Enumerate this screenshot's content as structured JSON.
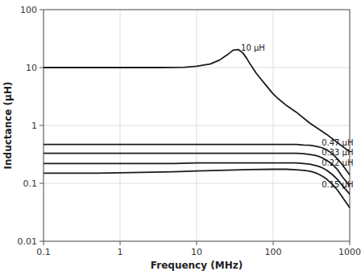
{
  "chart_data": {
    "type": "line",
    "title": "",
    "xlabel": "Frequency (MHz)",
    "ylabel": "Inductance (μH)",
    "log": true,
    "grid": true,
    "color": "#1a1a1a",
    "xlim": [
      0.1,
      1000
    ],
    "ylim": [
      0.01,
      100
    ],
    "xticks": [
      0.1,
      1,
      10,
      100,
      1000
    ],
    "yticks": [
      0.01,
      0.1,
      1,
      10,
      100
    ],
    "series": [
      {
        "x": [
          0.1,
          0.3,
          0.5,
          1,
          2,
          3,
          5,
          7,
          10,
          15,
          20,
          25,
          30,
          35,
          40,
          45,
          50,
          55,
          60,
          70,
          80,
          100,
          120,
          150,
          200,
          300,
          400,
          500,
          700,
          1000
        ],
        "values": [
          10.0,
          10.0,
          10.0,
          10.0,
          10.0,
          10.0,
          10.05,
          10.15,
          10.5,
          11.5,
          13.5,
          16.5,
          20.0,
          20.5,
          18.0,
          14.5,
          11.5,
          9.5,
          8.0,
          6.2,
          5.0,
          3.5,
          2.8,
          2.2,
          1.7,
          1.1,
          0.85,
          0.7,
          0.5,
          0.35
        ]
      },
      {
        "x": [
          0.1,
          0.5,
          1,
          5,
          10,
          20,
          50,
          100,
          150,
          200,
          250,
          300,
          350,
          400,
          450,
          500,
          600,
          700,
          800,
          1000
        ],
        "values": [
          0.47,
          0.47,
          0.47,
          0.47,
          0.47,
          0.47,
          0.47,
          0.47,
          0.47,
          0.47,
          0.46,
          0.455,
          0.44,
          0.425,
          0.405,
          0.38,
          0.32,
          0.26,
          0.21,
          0.14
        ]
      },
      {
        "x": [
          0.1,
          0.5,
          1,
          5,
          10,
          20,
          50,
          100,
          150,
          200,
          250,
          300,
          350,
          400,
          450,
          500,
          600,
          700,
          800,
          1000
        ],
        "values": [
          0.33,
          0.33,
          0.33,
          0.33,
          0.33,
          0.33,
          0.33,
          0.33,
          0.33,
          0.33,
          0.325,
          0.315,
          0.305,
          0.29,
          0.27,
          0.25,
          0.21,
          0.17,
          0.13,
          0.09
        ]
      },
      {
        "x": [
          0.1,
          0.5,
          1,
          5,
          10,
          20,
          50,
          100,
          150,
          200,
          250,
          300,
          350,
          400,
          450,
          500,
          600,
          700,
          800,
          1000
        ],
        "values": [
          0.22,
          0.22,
          0.22,
          0.22,
          0.225,
          0.225,
          0.225,
          0.225,
          0.225,
          0.225,
          0.22,
          0.215,
          0.205,
          0.195,
          0.182,
          0.168,
          0.14,
          0.115,
          0.092,
          0.065
        ]
      },
      {
        "x": [
          0.1,
          0.5,
          1,
          5,
          10,
          20,
          50,
          100,
          150,
          200,
          250,
          300,
          350,
          400,
          450,
          500,
          600,
          700,
          800,
          1000
        ],
        "values": [
          0.15,
          0.15,
          0.152,
          0.158,
          0.163,
          0.168,
          0.173,
          0.175,
          0.175,
          0.172,
          0.168,
          0.162,
          0.153,
          0.142,
          0.13,
          0.118,
          0.095,
          0.075,
          0.058,
          0.038
        ]
      }
    ],
    "annotations": [
      {
        "text": "10 μH",
        "x": 38,
        "y": 22.0
      },
      {
        "text": "0.47 μH",
        "x": 430,
        "y": 0.5
      },
      {
        "text": "0.33 μH",
        "x": 430,
        "y": 0.345
      },
      {
        "text": "0.22 μH",
        "x": 430,
        "y": 0.228
      },
      {
        "text": "0.15 μH",
        "x": 430,
        "y": 0.095
      }
    ]
  }
}
